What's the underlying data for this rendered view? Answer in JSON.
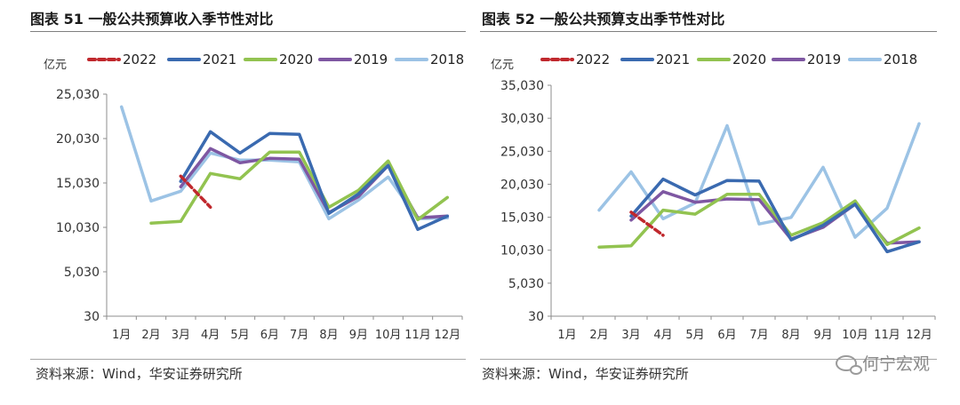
{
  "charts": [
    {
      "figure_title": "图表 51  一般公共预算收入季节性对比",
      "source_note": "资料来源：Wind，华安证券研究所"
    },
    {
      "figure_title": "图表 52  一般公共预算支出季节性对比",
      "source_note": "资料来源：Wind，华安证券研究所"
    }
  ],
  "watermark": {
    "text": "何宁宏观",
    "icon": "wechat-icon"
  },
  "chart_data": [
    {
      "type": "line",
      "title": "一般公共预算收入季节性对比",
      "ylabel": "亿元",
      "xlabel": "",
      "categories": [
        "1月",
        "2月",
        "3月",
        "4月",
        "5月",
        "6月",
        "7月",
        "8月",
        "9月",
        "10月",
        "11月",
        "12月"
      ],
      "ylim": [
        30,
        25030
      ],
      "yticks": [
        30,
        5030,
        10030,
        15030,
        20030,
        25030
      ],
      "ytick_labels": [
        "30",
        "5,030",
        "10,030",
        "15,030",
        "20,030",
        "25,030"
      ],
      "legend_position": "top",
      "series": [
        {
          "name": "2022",
          "color": "#c0282d",
          "dashed": true,
          "values": [
            null,
            null,
            15800,
            12300,
            null,
            null,
            null,
            null,
            null,
            null,
            null,
            null
          ]
        },
        {
          "name": "2021",
          "color": "#3a6ab0",
          "dashed": false,
          "values": [
            null,
            null,
            15200,
            20800,
            18400,
            20600,
            20500,
            11600,
            13800,
            17000,
            9800,
            11300
          ]
        },
        {
          "name": "2020",
          "color": "#92c350",
          "dashed": false,
          "values": [
            null,
            10500,
            10700,
            16100,
            15500,
            18500,
            18500,
            12300,
            14200,
            17500,
            10900,
            13400
          ]
        },
        {
          "name": "2019",
          "color": "#7e57a2",
          "dashed": false,
          "values": [
            null,
            null,
            14600,
            18900,
            17300,
            17800,
            17700,
            11700,
            13500,
            17000,
            11100,
            11300
          ]
        },
        {
          "name": "2018",
          "color": "#9cc3e5",
          "dashed": false,
          "values": [
            23600,
            13000,
            14100,
            18400,
            17600,
            17600,
            17400,
            11000,
            13100,
            15700,
            11000,
            11100
          ]
        }
      ]
    },
    {
      "type": "line",
      "title": "一般公共预算支出季节性对比",
      "ylabel": "亿元",
      "xlabel": "",
      "categories": [
        "1月",
        "2月",
        "3月",
        "4月",
        "5月",
        "6月",
        "7月",
        "8月",
        "9月",
        "10月",
        "11月",
        "12月"
      ],
      "ylim": [
        30,
        35030
      ],
      "yticks": [
        30,
        5030,
        10030,
        15030,
        20030,
        25030,
        30030,
        35030
      ],
      "ytick_labels": [
        "30",
        "5,030",
        "10,030",
        "15,030",
        "20,030",
        "25,030",
        "30,030",
        "35,030"
      ],
      "legend_position": "top",
      "series": [
        {
          "name": "2022",
          "color": "#c0282d",
          "dashed": true,
          "values": [
            null,
            null,
            15800,
            12300,
            null,
            null,
            null,
            null,
            null,
            null,
            null,
            null
          ]
        },
        {
          "name": "2021",
          "color": "#3a6ab0",
          "dashed": false,
          "values": [
            null,
            null,
            15200,
            20800,
            18400,
            20600,
            20500,
            11600,
            13800,
            17000,
            9800,
            11300
          ]
        },
        {
          "name": "2020",
          "color": "#92c350",
          "dashed": false,
          "values": [
            null,
            10500,
            10700,
            16100,
            15500,
            18500,
            18500,
            12300,
            14200,
            17500,
            10900,
            13400
          ]
        },
        {
          "name": "2019",
          "color": "#7e57a2",
          "dashed": false,
          "values": [
            null,
            null,
            14600,
            18900,
            17300,
            17800,
            17700,
            11700,
            13500,
            17000,
            11100,
            11300
          ]
        },
        {
          "name": "2018",
          "color": "#9cc3e5",
          "dashed": false,
          "values": [
            null,
            16100,
            21900,
            14800,
            17200,
            28900,
            14000,
            15000,
            22600,
            12000,
            16400,
            29200
          ]
        }
      ]
    }
  ]
}
